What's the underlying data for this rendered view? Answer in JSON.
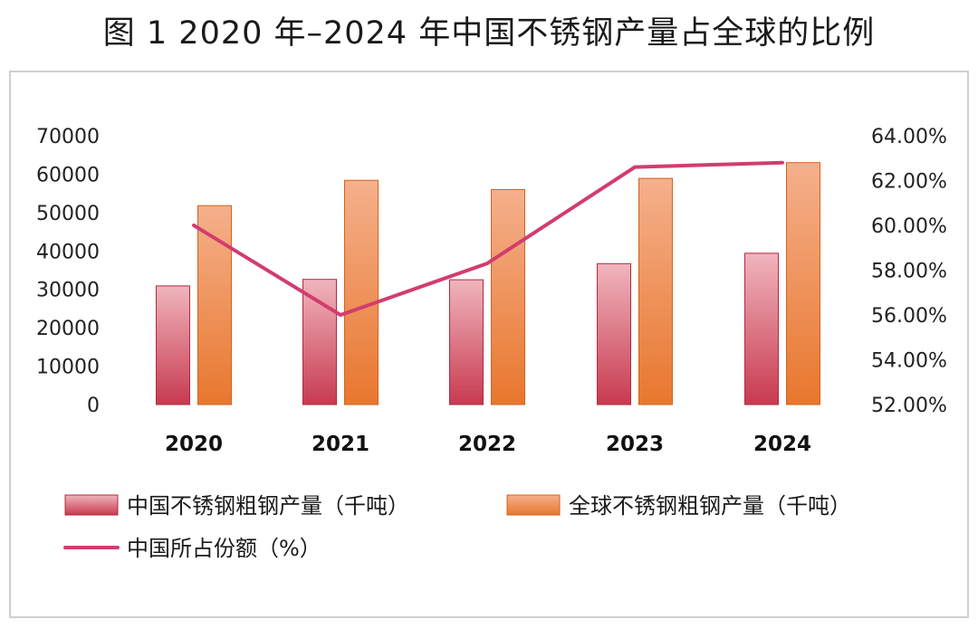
{
  "chart_data": {
    "type": "bar",
    "title": "图 1 2020 年–2024 年中国不锈钢产量占全球的比例",
    "categories": [
      "2020",
      "2021",
      "2022",
      "2023",
      "2024"
    ],
    "series": [
      {
        "name": "中国不锈钢粗钢产量（千吨）",
        "type": "bar",
        "axis": "left",
        "values": [
          30900,
          32600,
          32500,
          36700,
          39400
        ]
      },
      {
        "name": "全球不锈钢粗钢产量（千吨）",
        "type": "bar",
        "axis": "left",
        "values": [
          51800,
          58400,
          56000,
          58900,
          63000
        ]
      },
      {
        "name": "中国所占份额（%）",
        "type": "line",
        "axis": "right",
        "values": [
          60.0,
          56.0,
          58.3,
          62.6,
          62.8
        ]
      }
    ],
    "ylim": [
      0,
      70000
    ],
    "yticks": [
      "0",
      "10000",
      "20000",
      "30000",
      "40000",
      "50000",
      "60000",
      "70000"
    ],
    "y2lim": [
      52,
      64
    ],
    "y2ticks": [
      "52.00%",
      "54.00%",
      "56.00%",
      "58.00%",
      "60.00%",
      "62.00%",
      "64.00%"
    ],
    "legend_position": "bottom",
    "grid": false,
    "colors": {
      "china_bar_top": "#f0b5bd",
      "china_bar_bottom": "#c83a50",
      "global_bar_top": "#f5b08c",
      "global_bar_bottom": "#e8772e",
      "share_line": "#d23c6e"
    }
  }
}
